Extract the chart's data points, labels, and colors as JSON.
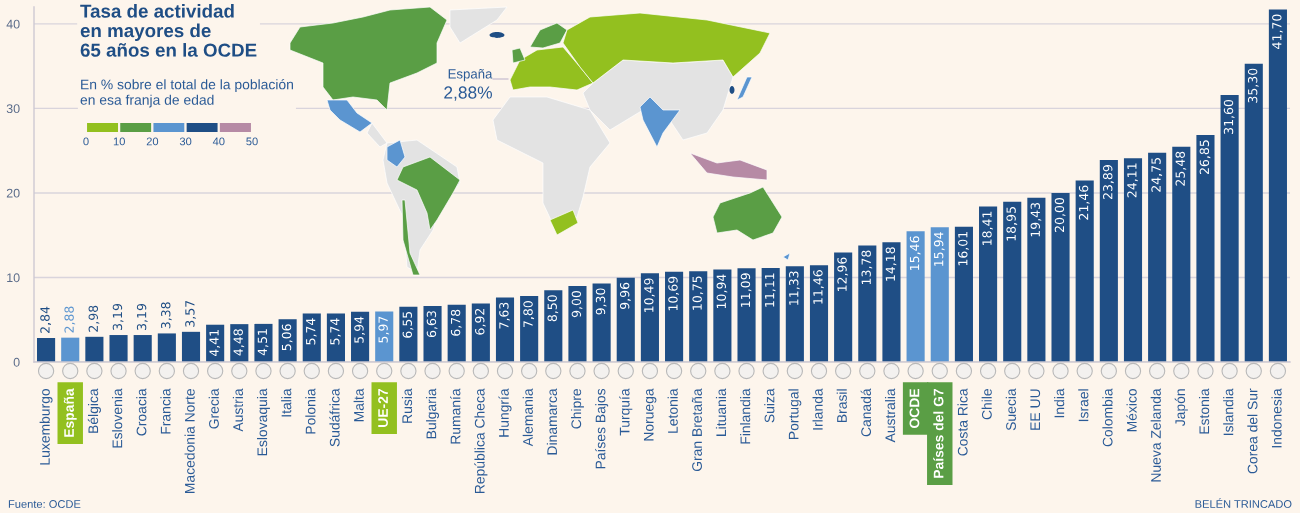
{
  "chart_data": [
    {
      "type": "bar",
      "title": "Tasa de actividad\nen mayores de\n65 años en la OCDE",
      "subtitle": "En % sobre el total de la población\nen esa franja de edad",
      "categories": [
        "Luxemburgo",
        "España",
        "Bélgica",
        "Eslovenia",
        "Croacia",
        "Francia",
        "Macedonia Norte",
        "Grecia",
        "Austria",
        "Eslovaquia",
        "Italia",
        "Polonia",
        "Sudáfrica",
        "Malta",
        "UE-27",
        "Rusia",
        "Bulgaria",
        "Rumanía",
        "República Checa",
        "Hungría",
        "Alemania",
        "Dinamarca",
        "Chipre",
        "Países Bajos",
        "Turquía",
        "Noruega",
        "Letonia",
        "Gran Bretaña",
        "Lituania",
        "Finlandia",
        "Suiza",
        "Portugal",
        "Irlanda",
        "Brasil",
        "Canadá",
        "Australia",
        "OCDE",
        "Países del G7",
        "Costa Rica",
        "Chile",
        "Suecia",
        "EE UU",
        "India",
        "Israel",
        "Colombia",
        "México",
        "Nueva Zelanda",
        "Japón",
        "Estonia",
        "Islandia",
        "Corea del Sur",
        "Indonesia"
      ],
      "values": [
        2.84,
        2.88,
        2.98,
        3.19,
        3.19,
        3.38,
        3.57,
        4.41,
        4.48,
        4.51,
        5.06,
        5.74,
        5.74,
        5.94,
        5.97,
        6.55,
        6.63,
        6.78,
        6.92,
        7.63,
        7.8,
        8.5,
        9.0,
        9.3,
        9.96,
        10.49,
        10.69,
        10.75,
        10.94,
        11.09,
        11.11,
        11.33,
        11.46,
        12.96,
        13.78,
        14.18,
        15.46,
        15.94,
        16.01,
        18.41,
        18.95,
        19.43,
        20.0,
        21.46,
        23.89,
        24.11,
        24.75,
        25.48,
        26.85,
        31.6,
        35.3,
        41.7
      ],
      "value_labels": [
        "2,84",
        "2,88",
        "2,98",
        "3,19",
        "3,19",
        "3,38",
        "3,57",
        "4,41",
        "4,48",
        "4,51",
        "5,06",
        "5,74",
        "5,74",
        "5,94",
        "5,97",
        "6,55",
        "6,63",
        "6,78",
        "6,92",
        "7,63",
        "7,80",
        "8,50",
        "9,00",
        "9,30",
        "9,96",
        "10,49",
        "10,69",
        "10,75",
        "10,94",
        "11,09",
        "11,11",
        "11,33",
        "11,46",
        "12,96",
        "13,78",
        "14,18",
        "15,46",
        "15,94",
        "16,01",
        "18,41",
        "18,95",
        "19,43",
        "20,00",
        "21,46",
        "23,89",
        "24,11",
        "24,75",
        "25,48",
        "26,85",
        "31,60",
        "35,30",
        "41,70"
      ],
      "colors": [
        "#1f4e85",
        "#5b95d0",
        "#1f4e85",
        "#1f4e85",
        "#1f4e85",
        "#1f4e85",
        "#1f4e85",
        "#1f4e85",
        "#1f4e85",
        "#1f4e85",
        "#1f4e85",
        "#1f4e85",
        "#1f4e85",
        "#1f4e85",
        "#5b95d0",
        "#1f4e85",
        "#1f4e85",
        "#1f4e85",
        "#1f4e85",
        "#1f4e85",
        "#1f4e85",
        "#1f4e85",
        "#1f4e85",
        "#1f4e85",
        "#1f4e85",
        "#1f4e85",
        "#1f4e85",
        "#1f4e85",
        "#1f4e85",
        "#1f4e85",
        "#1f4e85",
        "#1f4e85",
        "#1f4e85",
        "#1f4e85",
        "#1f4e85",
        "#1f4e85",
        "#5b95d0",
        "#5b95d0",
        "#1f4e85",
        "#1f4e85",
        "#1f4e85",
        "#1f4e85",
        "#1f4e85",
        "#1f4e85",
        "#1f4e85",
        "#1f4e85",
        "#1f4e85",
        "#1f4e85",
        "#1f4e85",
        "#1f4e85",
        "#1f4e85",
        "#1f4e85"
      ],
      "ylim": [
        0,
        42
      ],
      "yticks": [
        0,
        10,
        20,
        30,
        40
      ],
      "grid": "y",
      "annotations": [
        "Fuente: OCDE",
        "BELÉN TRINCADO"
      ]
    },
    {
      "type": "bar",
      "orientation": "horizontal",
      "stacked": true,
      "categories": [
        null
      ],
      "series": [
        {
          "color": "#93c01f",
          "values": [
            10
          ]
        },
        {
          "color": "#5a9e45",
          "values": [
            10
          ]
        },
        {
          "color": "#5b95d0",
          "values": [
            10
          ]
        },
        {
          "color": "#1f4e85",
          "values": [
            10
          ]
        },
        {
          "color": "#b68aa5",
          "values": [
            10
          ]
        }
      ],
      "xlim": [
        0,
        50
      ],
      "xticks": [
        0,
        10,
        20,
        30,
        40,
        50
      ],
      "tick_labels": "x",
      "annotations": [
        "España",
        "2,88%"
      ]
    }
  ]
}
